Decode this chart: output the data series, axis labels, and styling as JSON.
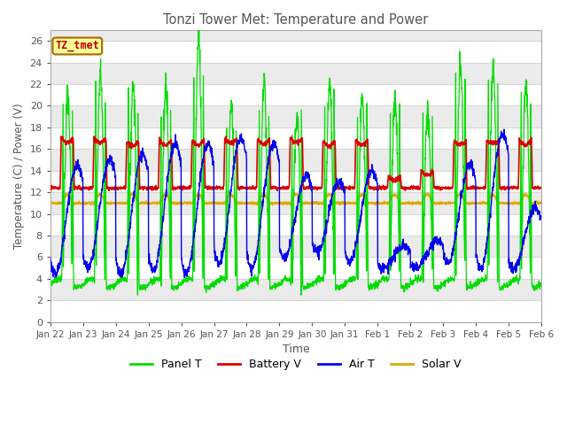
{
  "title": "Tonzi Tower Met: Temperature and Power",
  "xlabel": "Time",
  "ylabel": "Temperature (C) / Power (V)",
  "ylim": [
    0,
    27
  ],
  "yticks": [
    0,
    2,
    4,
    6,
    8,
    10,
    12,
    14,
    16,
    18,
    20,
    22,
    24,
    26
  ],
  "date_labels": [
    "Jan 22",
    "Jan 23",
    "Jan 24",
    "Jan 25",
    "Jan 26",
    "Jan 27",
    "Jan 28",
    "Jan 29",
    "Jan 30",
    "Jan 31",
    "Feb 1",
    "Feb 2",
    "Feb 3",
    "Feb 4",
    "Feb 5",
    "Feb 6"
  ],
  "legend_labels": [
    "Panel T",
    "Battery V",
    "Air T",
    "Solar V"
  ],
  "panel_color": "#00dd00",
  "battery_color": "#dd0000",
  "air_color": "#0000ee",
  "solar_color": "#ddaa00",
  "timezone_label": "TZ_tmet",
  "timezone_bg": "#ffff99",
  "timezone_border": "#aa6600",
  "background_color": "#ffffff",
  "grid_color": "#d8d8d8",
  "title_color": "#555555",
  "axis_label_color": "#555555",
  "tick_color": "#555555",
  "n_days": 15,
  "points_per_day": 144
}
